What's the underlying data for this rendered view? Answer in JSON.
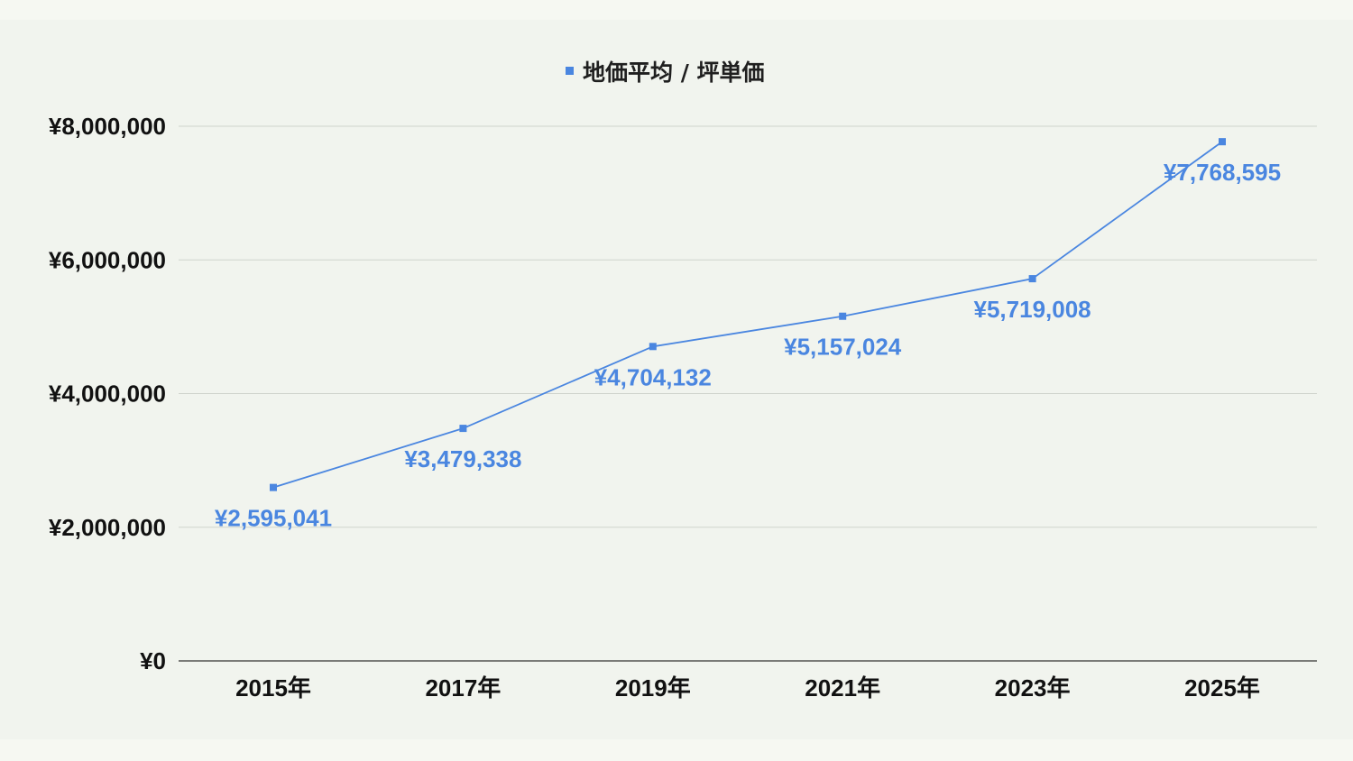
{
  "chart_data": {
    "type": "line",
    "title": "",
    "xlabel": "",
    "ylabel": "",
    "categories": [
      "2015年",
      "2017年",
      "2019年",
      "2021年",
      "2023年",
      "2025年"
    ],
    "series": [
      {
        "name": "地価平均 / 坪単価",
        "values": [
          2595041,
          3479338,
          4704132,
          5157024,
          5719008,
          7768595
        ],
        "labels": [
          "¥2,595,041",
          "¥3,479,338",
          "¥4,704,132",
          "¥5,157,024",
          "¥5,719,008",
          "¥7,768,595"
        ]
      }
    ],
    "ylim": [
      0,
      8000000
    ],
    "yticks": [
      0,
      2000000,
      4000000,
      6000000,
      8000000
    ],
    "ytick_labels": [
      "¥0",
      "¥2,000,000",
      "¥4,000,000",
      "¥6,000,000",
      "¥8,000,000"
    ],
    "grid": true,
    "legend": "top-center",
    "colors": {
      "series": "#4a86e0",
      "grid": "#cfd3cc",
      "background": "#f1f4ee"
    }
  }
}
